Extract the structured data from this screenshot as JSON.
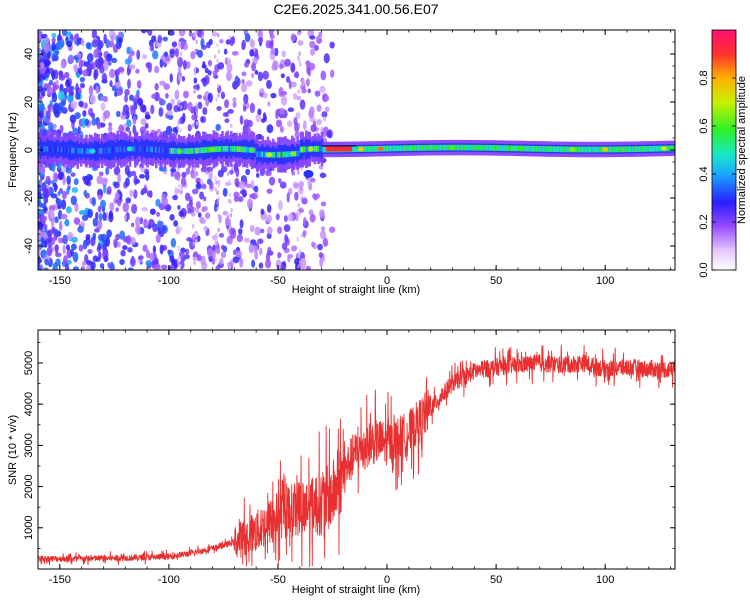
{
  "title": "C2E6.2025.341.00.56.E07",
  "colors": {
    "snr_line": "#e83030",
    "frame": "#000000"
  },
  "chart_data": [
    {
      "type": "heatmap",
      "name": "spectrogram",
      "xlabel": "Height of straight line (km)",
      "ylabel": "Frequency (Hz)",
      "xlim": [
        -160,
        132
      ],
      "ylim": [
        -50,
        50
      ],
      "xticks": [
        -150,
        -100,
        -50,
        0,
        50,
        100
      ],
      "yticks": [
        -40,
        -20,
        0,
        20,
        40
      ],
      "colorbar": {
        "label": "Normalized spectral amplitude",
        "range": [
          0.0,
          1.0
        ],
        "ticks": [
          0.0,
          0.2,
          0.4,
          0.6,
          0.8
        ],
        "tick_labels": [
          "0.0",
          "0.2",
          "0.4",
          "0.6",
          "0.8"
        ]
      },
      "description_points": {
        "centerline_hz": 0,
        "strong_band_start_km": -100,
        "scatter_region_end_km": -30
      }
    },
    {
      "type": "line",
      "name": "snr",
      "xlabel": "Height of straight line (km)",
      "ylabel": "SNR (10 * v/v)",
      "xlim": [
        -160,
        132
      ],
      "ylim": [
        0,
        5800
      ],
      "xticks": [
        -150,
        -100,
        -50,
        0,
        50,
        100
      ],
      "yticks": [
        1000,
        2000,
        3000,
        4000,
        5000
      ],
      "series": [
        {
          "name": "SNR",
          "x": [
            -160,
            -140,
            -120,
            -100,
            -90,
            -80,
            -70,
            -60,
            -50,
            -40,
            -30,
            -25,
            -20,
            -15,
            -10,
            -5,
            0,
            5,
            10,
            15,
            20,
            25,
            30,
            40,
            50,
            60,
            70,
            80,
            90,
            100,
            110,
            120,
            132
          ],
          "y": [
            250,
            250,
            270,
            300,
            380,
            500,
            650,
            900,
            1300,
            1500,
            1600,
            1800,
            2300,
            2800,
            3000,
            3100,
            3050,
            3150,
            3300,
            3600,
            3900,
            4200,
            4500,
            4800,
            4900,
            4950,
            5000,
            4950,
            5000,
            4850,
            4900,
            4850,
            4850
          ]
        }
      ]
    }
  ]
}
